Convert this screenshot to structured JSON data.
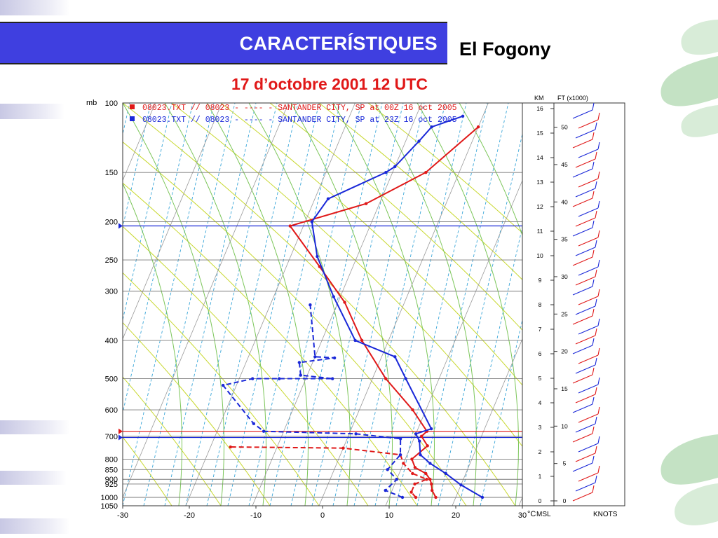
{
  "slide": {
    "title": "CARACTERÍSTIQUES",
    "place": "El Fogony",
    "date": "17 d’octobre 2001 12 UTC"
  },
  "colors": {
    "title_bg": "#3f3fe0",
    "date_text": "#e01818",
    "series_red": "#e01818",
    "series_blue": "#1a28d8",
    "isotherm": "#9a9a9a",
    "dry_adiabat": "#c8d830",
    "moist_adiabat": "#7cc65a",
    "mixing_ratio": "#3aa6d8"
  },
  "chart_data": {
    "type": "line",
    "subtype": "skew-T log-p sounding",
    "y_unit_label": "mb",
    "x_unit_label": "°C",
    "xlim": [
      -30,
      30
    ],
    "ylim": [
      1050,
      100
    ],
    "x_ticks": [
      -30,
      -20,
      -10,
      0,
      10,
      20,
      30
    ],
    "x_tick_labels": [
      "-30",
      "-20",
      "-10",
      "0",
      "10",
      "20",
      "30"
    ],
    "pressure_ticks": [
      100,
      150,
      200,
      250,
      300,
      400,
      500,
      600,
      700,
      800,
      850,
      900,
      925,
      1000,
      1050
    ],
    "pressure_tick_labels": [
      "100",
      "150",
      "200",
      "250",
      "300",
      "400",
      "500",
      "600",
      "700",
      "800",
      "850",
      "900",
      "925",
      "1000",
      "1050"
    ],
    "legend_position": "top",
    "series": [
      {
        "name": "08023.TXT // 08023 - ---- - SANTANDER CITY, SP    at 00Z 16 oct 2005",
        "color_key": "series_red",
        "temperature": [
          [
            17,
            1000
          ],
          [
            16,
            960
          ],
          [
            15.5,
            925
          ],
          [
            15,
            900
          ],
          [
            14,
            870
          ],
          [
            12,
            840
          ],
          [
            11,
            800
          ],
          [
            12.5,
            740
          ],
          [
            11,
            700
          ],
          [
            11.5,
            680
          ],
          [
            8,
            600
          ],
          [
            2,
            500
          ],
          [
            -4,
            400
          ],
          [
            -9,
            320
          ],
          [
            -15,
            260
          ],
          [
            -22,
            205
          ],
          [
            -12,
            180
          ],
          [
            -5,
            150
          ],
          [
            0,
            115
          ]
        ],
        "dewpoint": [
          [
            14,
            1000
          ],
          [
            13,
            970
          ],
          [
            13,
            925
          ],
          [
            14.5,
            900
          ],
          [
            12,
            870
          ],
          [
            10,
            820
          ],
          [
            9,
            780
          ],
          [
            0,
            750
          ],
          [
            -17,
            745
          ]
        ]
      },
      {
        "name": "08023.TXT // 08023 - ---- - SANTANDER CITY, SP    at 23Z 16 oct 2005",
        "color_key": "series_blue",
        "temperature": [
          [
            24,
            1000
          ],
          [
            20,
            930
          ],
          [
            17,
            870
          ],
          [
            14,
            820
          ],
          [
            12,
            780
          ],
          [
            11,
            720
          ],
          [
            10,
            690
          ],
          [
            12,
            670
          ],
          [
            5,
            500
          ],
          [
            2,
            440
          ],
          [
            -5,
            400
          ],
          [
            -11,
            310
          ],
          [
            -16,
            245
          ],
          [
            -19,
            200
          ],
          [
            -18,
            175
          ],
          [
            -11,
            150
          ],
          [
            -10,
            145
          ],
          [
            -8,
            125
          ],
          [
            -7,
            115
          ],
          [
            -3,
            108
          ]
        ],
        "dewpoint": [
          [
            12,
            1000
          ],
          [
            9,
            960
          ],
          [
            10,
            900
          ],
          [
            8,
            850
          ],
          [
            9,
            780
          ],
          [
            8,
            710
          ],
          [
            1,
            690
          ],
          [
            -13,
            680
          ],
          [
            -15,
            650
          ],
          [
            -22,
            520
          ],
          [
            -18,
            500
          ],
          [
            -14,
            500
          ],
          [
            -6,
            500
          ],
          [
            -11,
            490
          ],
          [
            -12,
            455
          ],
          [
            -7,
            443
          ],
          [
            -10,
            440
          ],
          [
            -14,
            325
          ]
        ]
      }
    ],
    "right_panel": {
      "km_label": "KM",
      "ft_label": "FT (x1000)",
      "km_ticks": [
        "0",
        "1",
        "2",
        "3",
        "4",
        "5",
        "6",
        "7",
        "8",
        "9",
        "10",
        "11",
        "12",
        "13",
        "14",
        "15",
        "16"
      ],
      "ft_ticks": [
        "0",
        "5",
        "10",
        "15",
        "20",
        "25",
        "30",
        "35",
        "40",
        "45",
        "50"
      ],
      "bottom_left_label": "MSL",
      "bottom_right_label": "KNOTS"
    }
  }
}
